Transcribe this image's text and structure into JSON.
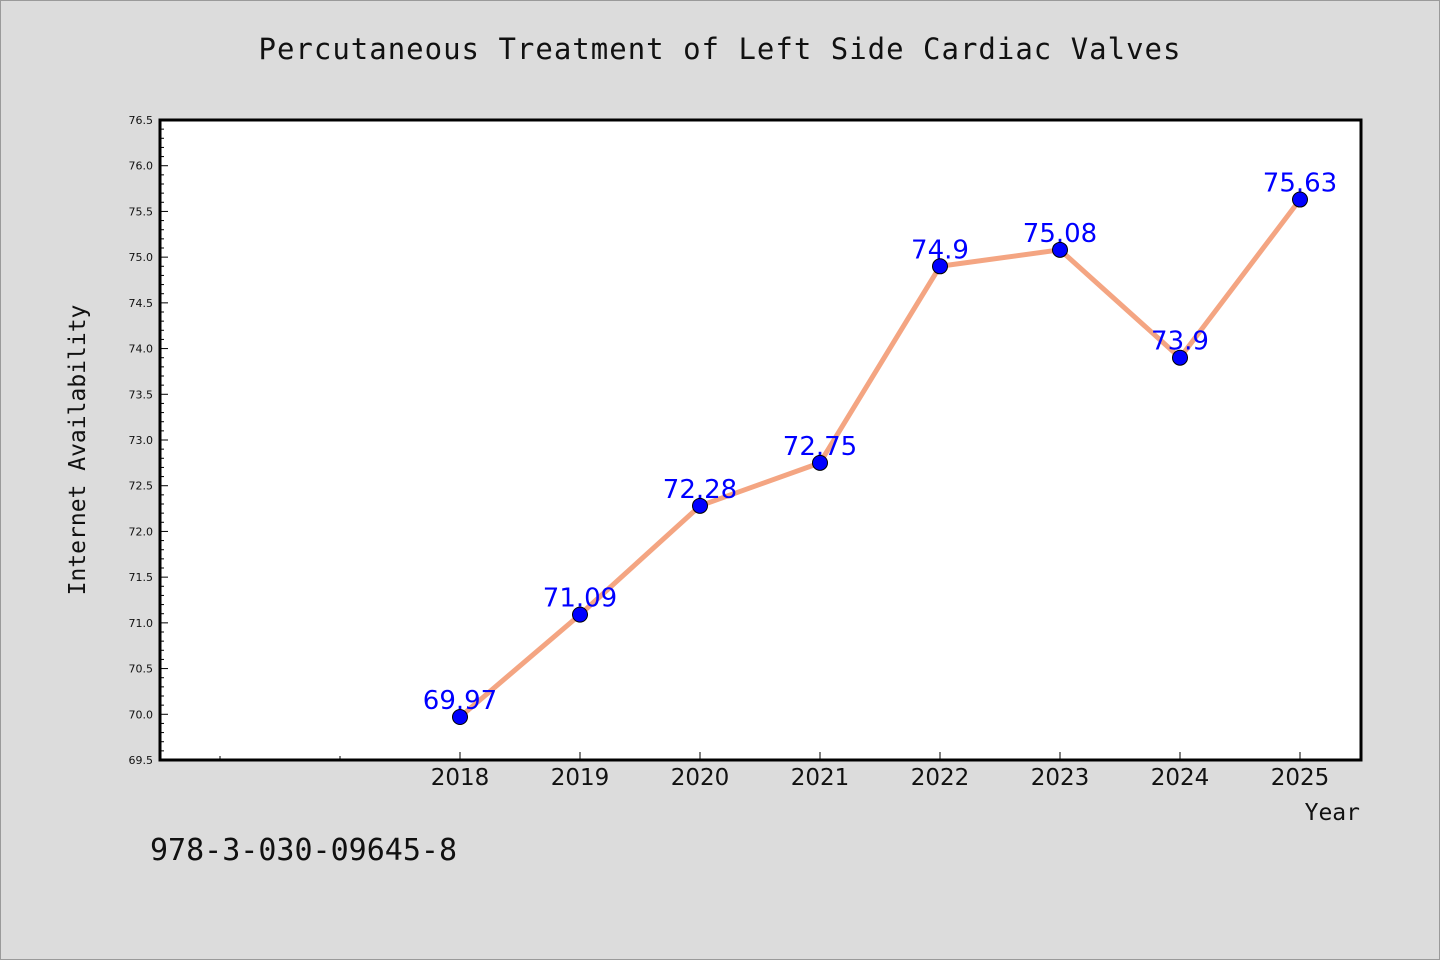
{
  "chart_data": {
    "type": "line",
    "title": "Percutaneous Treatment of Left Side Cardiac Valves",
    "xlabel": "Year",
    "ylabel": "Internet Availability",
    "x": [
      "2018",
      "2019",
      "2020",
      "2021",
      "2022",
      "2023",
      "2024",
      "2025"
    ],
    "values": [
      69.97,
      71.09,
      72.28,
      72.75,
      74.9,
      75.08,
      73.9,
      75.63
    ],
    "data_labels": [
      "69.97",
      "71.09",
      "72.28",
      "72.75",
      "74.9",
      "75.08",
      "73.9",
      "75.63"
    ],
    "ylim": [
      69.5,
      76.5
    ],
    "yticks": [
      "69.5",
      "70.0",
      "70.5",
      "71.0",
      "71.5",
      "72.0",
      "72.5",
      "73.0",
      "73.5",
      "74.0",
      "74.5",
      "75.0",
      "75.5",
      "76.0",
      "76.5"
    ],
    "grid": false,
    "legend": "none",
    "colors": {
      "line": "#f4a582",
      "marker": "#0000ff",
      "data_label": "#0000ff",
      "plot_background": "#ffffff",
      "figure_background": "#dcdcdc"
    }
  },
  "footer": {
    "identifier": "978-3-030-09645-8"
  }
}
